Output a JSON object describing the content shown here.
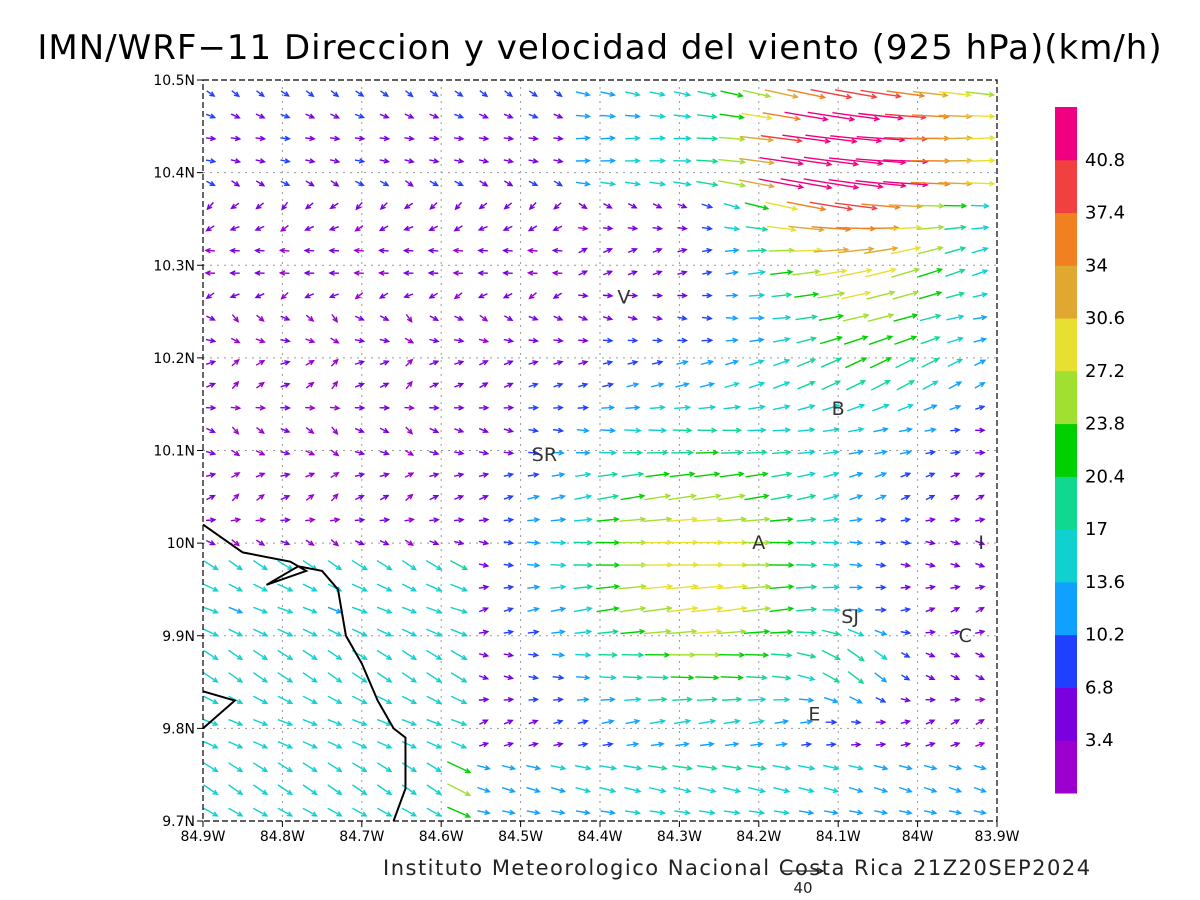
{
  "chart_data": {
    "type": "vector-field",
    "title": "IMN/WRF−11 Direccion y velocidad del viento (925 hPa)(km/h)",
    "credit": "Instituto Meteorologico Nacional Costa Rica  21Z20SEP2024",
    "x_ticks": [
      "84.9W",
      "84.8W",
      "84.7W",
      "84.6W",
      "84.5W",
      "84.4W",
      "84.3W",
      "84.2W",
      "84.1W",
      "84W",
      "83.9W"
    ],
    "y_ticks": [
      "10.5N",
      "10.4N",
      "10.3N",
      "10.2N",
      "10.1N",
      "10N",
      "9.9N",
      "9.8N",
      "9.7N"
    ],
    "xlim": [
      -84.9,
      -83.9
    ],
    "ylim": [
      9.7,
      10.5
    ],
    "grid": true,
    "reference_vector": {
      "label": "40",
      "value": 40
    },
    "colorbar": {
      "labels": [
        "3.4",
        "6.8",
        "10.2",
        "13.6",
        "17",
        "20.4",
        "23.8",
        "27.2",
        "30.6",
        "34",
        "37.4",
        "40.8"
      ],
      "colors": [
        "#9b00cf",
        "#7a00e0",
        "#2040ff",
        "#10a0ff",
        "#10d0d0",
        "#10d890",
        "#00d000",
        "#a0e030",
        "#e8e030",
        "#e0a830",
        "#f08020",
        "#f04040",
        "#f00080"
      ]
    },
    "places": [
      {
        "label": "V",
        "lon": -84.37,
        "lat": 10.265
      },
      {
        "label": "B",
        "lon": -84.1,
        "lat": 10.145
      },
      {
        "label": "SR",
        "lon": -84.47,
        "lat": 10.095
      },
      {
        "label": "A",
        "lon": -84.2,
        "lat": 10.0
      },
      {
        "label": "I",
        "lon": -83.92,
        "lat": 10.0
      },
      {
        "label": "SJ",
        "lon": -84.085,
        "lat": 9.92
      },
      {
        "label": "C",
        "lon": -83.94,
        "lat": 9.9
      },
      {
        "label": "E",
        "lon": -84.13,
        "lat": 9.815
      }
    ],
    "coastline": [
      [
        -84.9,
        10.02
      ],
      [
        -84.85,
        9.99
      ],
      [
        -84.79,
        9.98
      ],
      [
        -84.77,
        9.97
      ],
      [
        -84.82,
        9.955
      ],
      [
        -84.78,
        9.975
      ],
      [
        -84.75,
        9.97
      ],
      [
        -84.73,
        9.95
      ],
      [
        -84.72,
        9.9
      ],
      [
        -84.7,
        9.87
      ],
      [
        -84.68,
        9.83
      ],
      [
        -84.66,
        9.8
      ],
      [
        -84.645,
        9.79
      ],
      [
        -84.645,
        9.735
      ],
      [
        -84.66,
        9.7
      ]
    ],
    "coastline_b": [
      [
        -84.9,
        9.84
      ],
      [
        -84.86,
        9.83
      ],
      [
        -84.9,
        9.8
      ]
    ]
  }
}
